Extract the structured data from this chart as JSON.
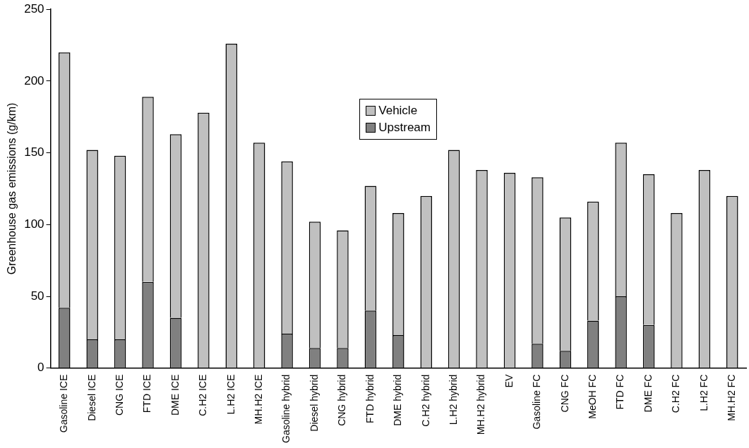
{
  "chart_data": {
    "type": "bar",
    "stacked": true,
    "ylabel": "Greenhouse gas emissions (g/km)",
    "categories": [
      "Gasoline ICE",
      "Diesel ICE",
      "CNG ICE",
      "FTD ICE",
      "DME ICE",
      "C.H2 ICE",
      "L.H2 ICE",
      "MH.H2 ICE",
      "Gasoline hybrid",
      "Diesel hybrid",
      "CNG hybrid",
      "FTD hybrid",
      "DME hybrid",
      "C.H2 hybrid",
      "L.H2 hybrid",
      "MH.H2 hybrid",
      "EV",
      "Gasoline FC",
      "CNG FC",
      "MeOH FC",
      "FTD FC",
      "DME FC",
      "C.H2 FC",
      "L.H2 FC",
      "MH.H2 FC"
    ],
    "series": [
      {
        "name": "Upstream",
        "color": "#808080",
        "values": [
          42,
          20,
          20,
          60,
          35,
          0,
          0,
          0,
          24,
          14,
          14,
          40,
          23,
          0,
          0,
          0,
          0,
          17,
          12,
          33,
          50,
          30,
          0,
          0,
          0
        ]
      },
      {
        "name": "Vehicle",
        "color": "#c0c0c0",
        "values": [
          178,
          132,
          128,
          129,
          128,
          178,
          226,
          157,
          120,
          88,
          82,
          87,
          85,
          120,
          152,
          138,
          136,
          116,
          93,
          83,
          107,
          105,
          108,
          138,
          120
        ]
      }
    ],
    "ylim": [
      0,
      250
    ],
    "yticks": [
      0,
      50,
      100,
      150,
      200,
      250
    ],
    "grid": false,
    "legend": "top"
  }
}
